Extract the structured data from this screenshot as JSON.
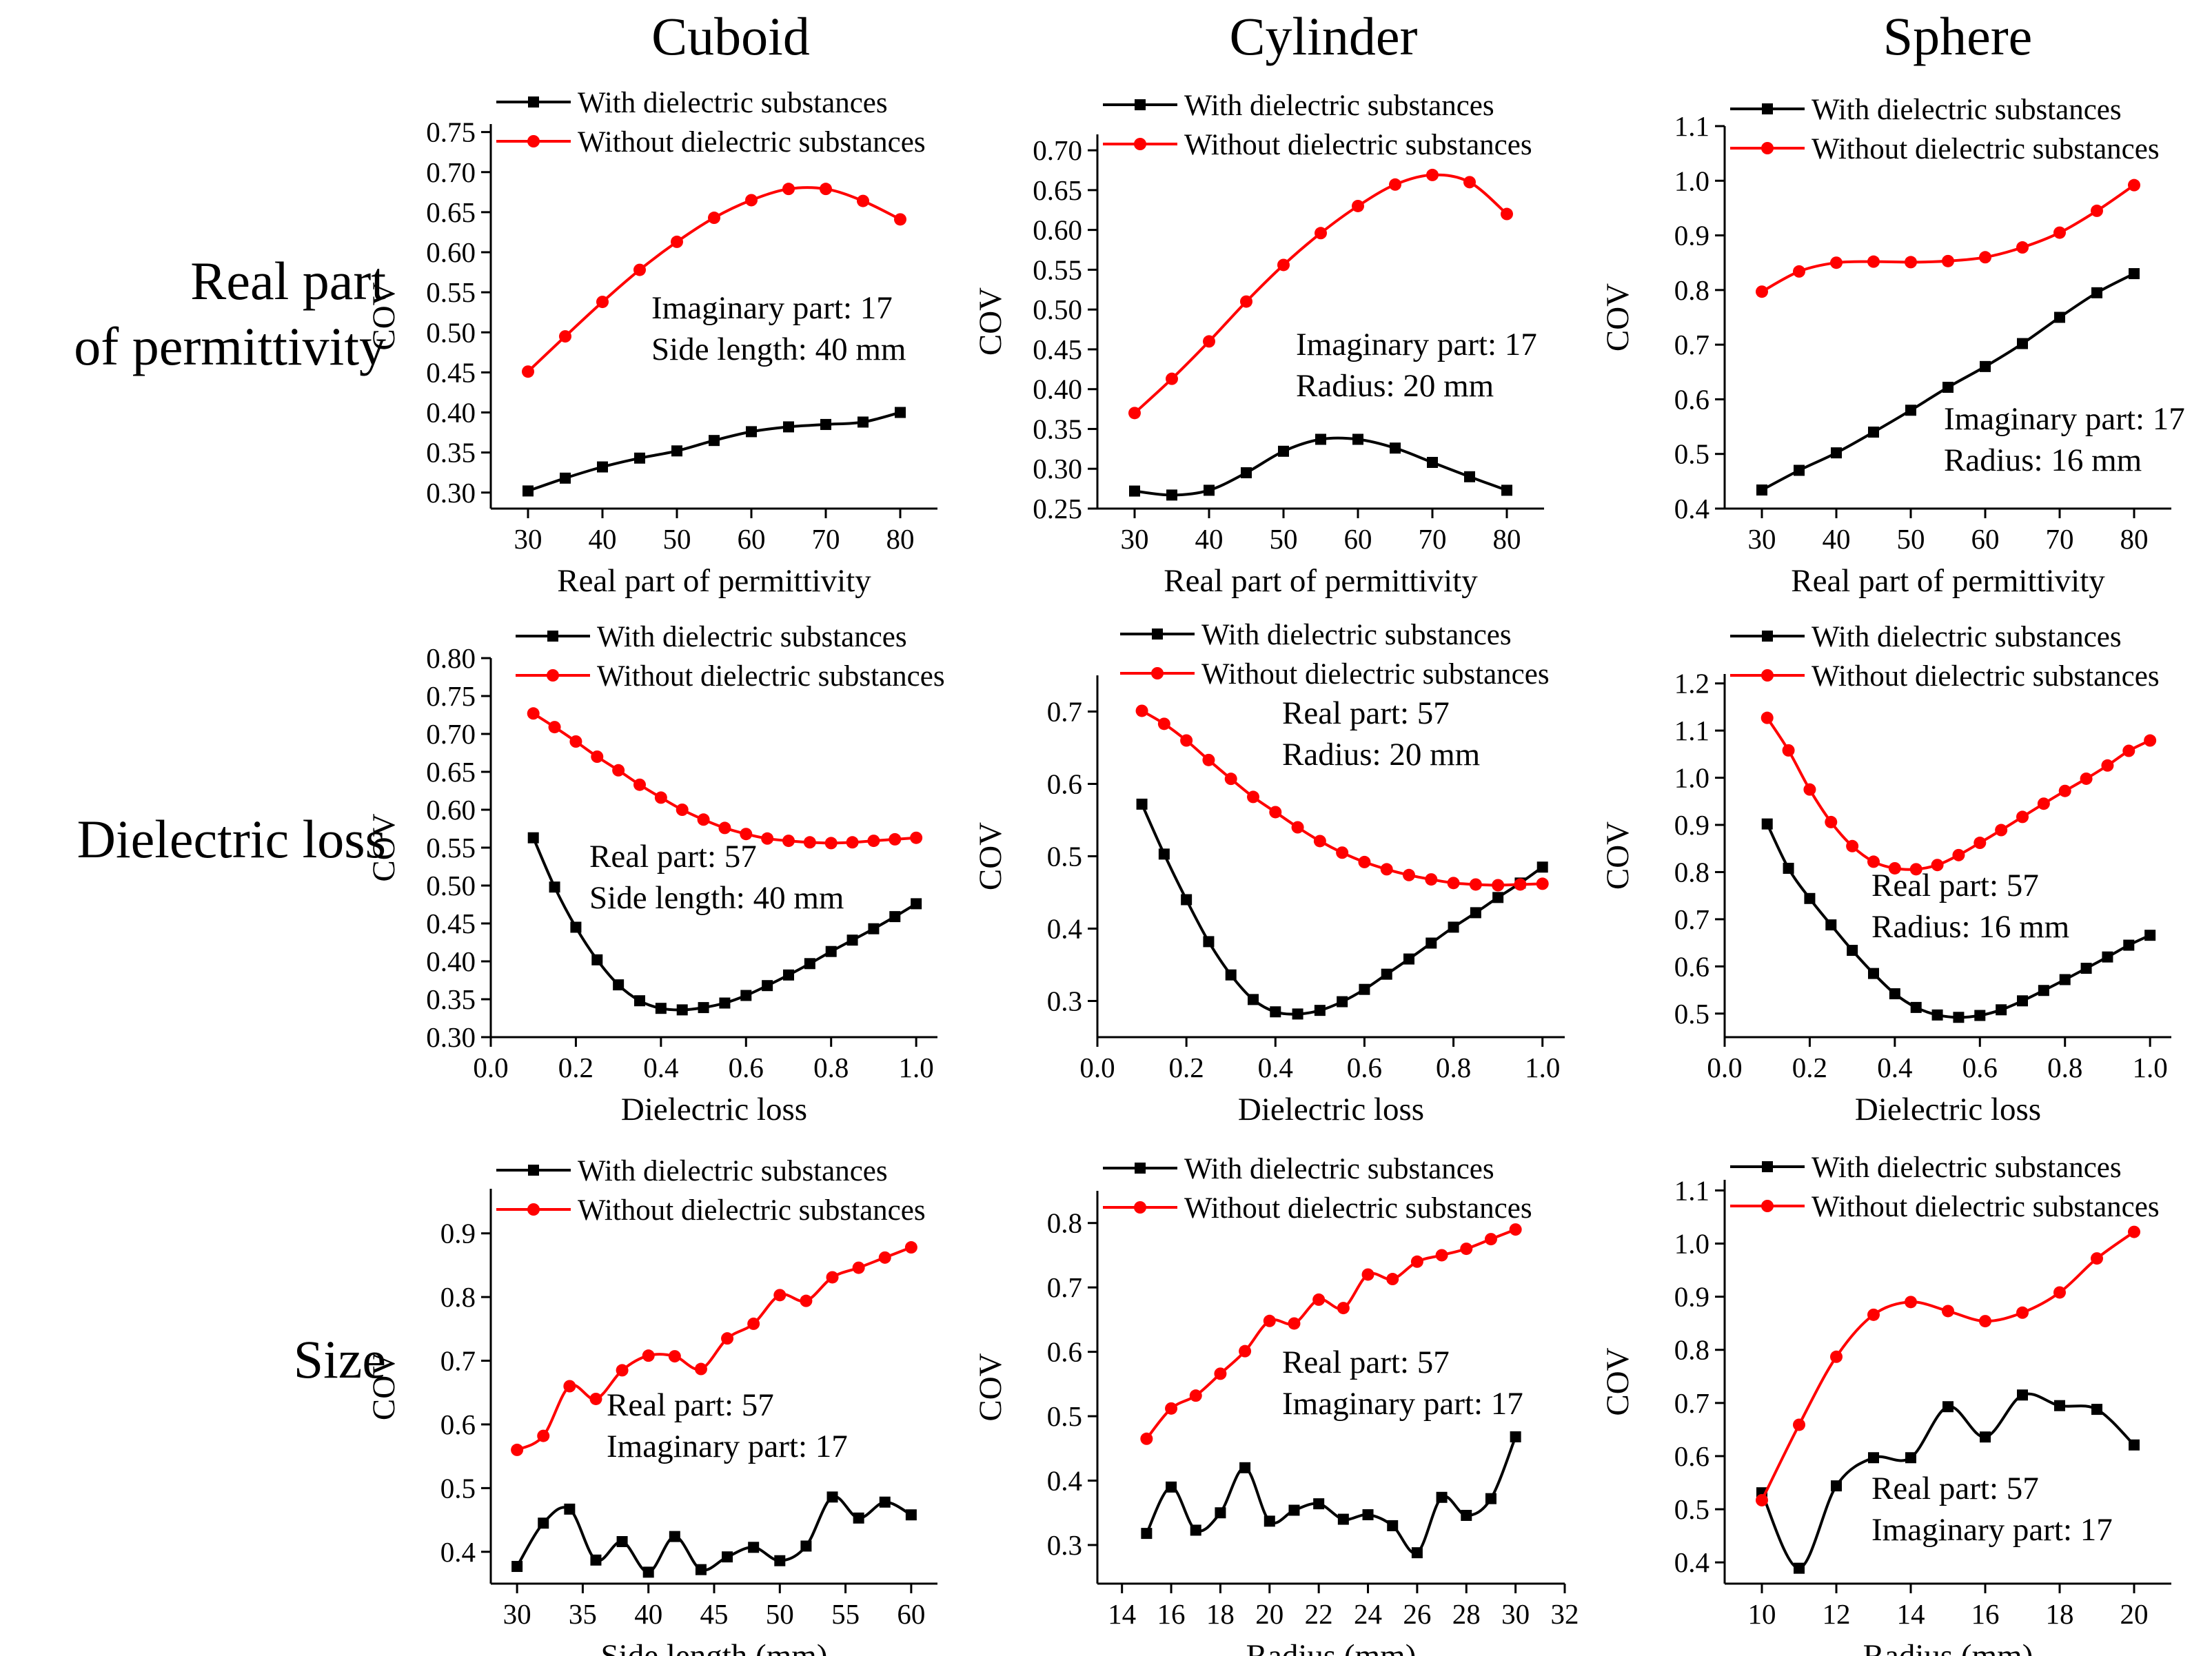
{
  "column_titles": [
    "Cuboid",
    "Cylinder",
    "Sphere"
  ],
  "row_labels": [
    [
      "Real part",
      "of permittivity"
    ],
    [
      "Dielectric loss"
    ],
    [
      "Size"
    ]
  ],
  "legend": {
    "with_label": "With dielectric substances",
    "without_label": "Without dielectric substances"
  },
  "colors": {
    "with": "#000000",
    "without": "#ff0000"
  },
  "chart_data": [
    {
      "id": "r0c0",
      "type": "line",
      "xlabel": "Real part of permittivity",
      "ylabel": "COV",
      "xlim": [
        25,
        85
      ],
      "xticks": [
        30,
        40,
        50,
        60,
        70,
        80
      ],
      "ylim": [
        0.28,
        0.76
      ],
      "yticks": [
        0.3,
        0.35,
        0.4,
        0.45,
        0.5,
        0.55,
        0.6,
        0.65,
        0.7,
        0.75
      ],
      "ydec": 2,
      "annotation": [
        "Imaginary part: 17",
        "Side length: 40 mm"
      ],
      "series": [
        {
          "name": "With dielectric substances",
          "x": [
            30,
            35,
            40,
            45,
            50,
            55,
            60,
            65,
            70,
            75,
            80
          ],
          "y": [
            0.302,
            0.318,
            0.332,
            0.343,
            0.352,
            0.365,
            0.376,
            0.382,
            0.385,
            0.388,
            0.4
          ]
        },
        {
          "name": "Without dielectric substances",
          "x": [
            30,
            35,
            40,
            45,
            50,
            55,
            60,
            65,
            70,
            75,
            80
          ],
          "y": [
            0.451,
            0.495,
            0.538,
            0.578,
            0.613,
            0.643,
            0.665,
            0.679,
            0.679,
            0.664,
            0.641
          ]
        }
      ]
    },
    {
      "id": "r0c1",
      "type": "line",
      "xlabel": "Real part of permittivity",
      "ylabel": "COV",
      "xlim": [
        25,
        85
      ],
      "xticks": [
        30,
        40,
        50,
        60,
        70,
        80
      ],
      "ylim": [
        0.25,
        0.72
      ],
      "yticks": [
        0.25,
        0.3,
        0.35,
        0.4,
        0.45,
        0.5,
        0.55,
        0.6,
        0.65,
        0.7
      ],
      "ydec": 2,
      "annotation": [
        "Imaginary part: 17",
        "Radius: 20 mm"
      ],
      "series": [
        {
          "name": "With dielectric substances",
          "x": [
            30,
            35,
            40,
            45,
            50,
            55,
            60,
            65,
            70,
            75,
            80
          ],
          "y": [
            0.272,
            0.267,
            0.273,
            0.295,
            0.322,
            0.337,
            0.337,
            0.326,
            0.308,
            0.29,
            0.273
          ]
        },
        {
          "name": "Without dielectric substances",
          "x": [
            30,
            35,
            40,
            45,
            50,
            55,
            60,
            65,
            70,
            75,
            80
          ],
          "y": [
            0.37,
            0.413,
            0.46,
            0.51,
            0.556,
            0.596,
            0.63,
            0.657,
            0.669,
            0.66,
            0.62
          ]
        }
      ]
    },
    {
      "id": "r0c2",
      "type": "line",
      "xlabel": "Real part of permittivity",
      "ylabel": "COV",
      "xlim": [
        25,
        85
      ],
      "xticks": [
        30,
        40,
        50,
        60,
        70,
        80
      ],
      "ylim": [
        0.4,
        1.1
      ],
      "yticks": [
        0.4,
        0.5,
        0.6,
        0.7,
        0.8,
        0.9,
        1.0,
        1.1
      ],
      "ydec": 1,
      "annotation": [
        "Imaginary part: 17",
        "Radius: 16 mm"
      ],
      "series": [
        {
          "name": "With dielectric substances",
          "x": [
            30,
            35,
            40,
            45,
            50,
            55,
            60,
            65,
            70,
            75,
            80
          ],
          "y": [
            0.434,
            0.47,
            0.502,
            0.54,
            0.58,
            0.622,
            0.66,
            0.702,
            0.75,
            0.795,
            0.83
          ]
        },
        {
          "name": "Without dielectric substances",
          "x": [
            30,
            35,
            40,
            45,
            50,
            55,
            60,
            65,
            70,
            75,
            80
          ],
          "y": [
            0.797,
            0.834,
            0.85,
            0.852,
            0.851,
            0.853,
            0.86,
            0.878,
            0.905,
            0.945,
            0.992
          ]
        }
      ]
    },
    {
      "id": "r1c0",
      "type": "line",
      "xlabel": "Dielectric loss",
      "ylabel": "COV",
      "xlim": [
        0,
        1.05
      ],
      "xticks": [
        0.0,
        0.2,
        0.4,
        0.6,
        0.8,
        1.0
      ],
      "xdec": 1,
      "ylim": [
        0.3,
        0.8
      ],
      "yticks": [
        0.3,
        0.35,
        0.4,
        0.45,
        0.5,
        0.55,
        0.6,
        0.65,
        0.7,
        0.75,
        0.8
      ],
      "ydec": 2,
      "annotation": [
        "Real part: 57",
        "Side length: 40 mm"
      ],
      "series": [
        {
          "name": "With dielectric substances",
          "x": [
            0.1,
            0.15,
            0.2,
            0.25,
            0.3,
            0.35,
            0.4,
            0.45,
            0.5,
            0.55,
            0.6,
            0.65,
            0.7,
            0.75,
            0.8,
            0.85,
            0.9,
            0.95,
            1.0
          ],
          "y": [
            0.563,
            0.498,
            0.445,
            0.402,
            0.369,
            0.348,
            0.338,
            0.336,
            0.339,
            0.345,
            0.355,
            0.368,
            0.382,
            0.397,
            0.413,
            0.428,
            0.443,
            0.459,
            0.476
          ]
        },
        {
          "name": "Without dielectric substances",
          "x": [
            0.1,
            0.15,
            0.2,
            0.25,
            0.3,
            0.35,
            0.4,
            0.45,
            0.5,
            0.55,
            0.6,
            0.65,
            0.7,
            0.75,
            0.8,
            0.85,
            0.9,
            0.95,
            1.0
          ],
          "y": [
            0.727,
            0.709,
            0.69,
            0.67,
            0.652,
            0.633,
            0.616,
            0.6,
            0.587,
            0.576,
            0.568,
            0.562,
            0.559,
            0.557,
            0.556,
            0.557,
            0.559,
            0.561,
            0.563
          ]
        }
      ]
    },
    {
      "id": "r1c1",
      "type": "line",
      "xlabel": "Dielectric loss",
      "ylabel": "COV",
      "xlim": [
        0,
        1.05
      ],
      "xticks": [
        0.0,
        0.2,
        0.4,
        0.6,
        0.8,
        1.0
      ],
      "xdec": 1,
      "ylim": [
        0.25,
        0.75
      ],
      "yticks": [
        0.3,
        0.4,
        0.5,
        0.6,
        0.7
      ],
      "ydec": 1,
      "annotation": [
        "Real part: 57",
        "Radius: 20 mm"
      ],
      "series": [
        {
          "name": "With dielectric substances",
          "x": [
            0.1,
            0.15,
            0.2,
            0.25,
            0.3,
            0.35,
            0.4,
            0.45,
            0.5,
            0.55,
            0.6,
            0.65,
            0.7,
            0.75,
            0.8,
            0.85,
            0.9,
            0.95,
            1.0
          ],
          "y": [
            0.572,
            0.503,
            0.44,
            0.382,
            0.336,
            0.302,
            0.285,
            0.282,
            0.287,
            0.299,
            0.316,
            0.337,
            0.358,
            0.38,
            0.402,
            0.422,
            0.443,
            0.463,
            0.485
          ]
        },
        {
          "name": "Without dielectric substances",
          "x": [
            0.1,
            0.15,
            0.2,
            0.25,
            0.3,
            0.35,
            0.4,
            0.45,
            0.5,
            0.55,
            0.6,
            0.65,
            0.7,
            0.75,
            0.8,
            0.85,
            0.9,
            0.95,
            1.0
          ],
          "y": [
            0.701,
            0.683,
            0.66,
            0.633,
            0.607,
            0.582,
            0.561,
            0.54,
            0.521,
            0.505,
            0.492,
            0.482,
            0.474,
            0.468,
            0.463,
            0.461,
            0.46,
            0.461,
            0.462
          ]
        }
      ]
    },
    {
      "id": "r1c2",
      "type": "line",
      "xlabel": "Dielectric loss",
      "ylabel": "COV",
      "xlim": [
        0,
        1.05
      ],
      "xticks": [
        0.0,
        0.2,
        0.4,
        0.6,
        0.8,
        1.0
      ],
      "xdec": 1,
      "ylim": [
        0.45,
        1.22
      ],
      "yticks": [
        0.5,
        0.6,
        0.7,
        0.8,
        0.9,
        1.0,
        1.1,
        1.2
      ],
      "ydec": 1,
      "annotation": [
        "Real part: 57",
        "Radius: 16 mm"
      ],
      "series": [
        {
          "name": "With dielectric substances",
          "x": [
            0.1,
            0.15,
            0.2,
            0.25,
            0.3,
            0.35,
            0.4,
            0.45,
            0.5,
            0.55,
            0.6,
            0.65,
            0.7,
            0.75,
            0.8,
            0.85,
            0.9,
            0.95,
            1.0
          ],
          "y": [
            0.902,
            0.808,
            0.744,
            0.688,
            0.634,
            0.585,
            0.542,
            0.513,
            0.497,
            0.492,
            0.496,
            0.508,
            0.527,
            0.549,
            0.572,
            0.596,
            0.62,
            0.645,
            0.666
          ]
        },
        {
          "name": "Without dielectric substances",
          "x": [
            0.1,
            0.15,
            0.2,
            0.25,
            0.3,
            0.35,
            0.4,
            0.45,
            0.5,
            0.55,
            0.6,
            0.65,
            0.7,
            0.75,
            0.8,
            0.85,
            0.9,
            0.95,
            1.0
          ],
          "y": [
            1.127,
            1.058,
            0.975,
            0.906,
            0.855,
            0.822,
            0.808,
            0.806,
            0.815,
            0.836,
            0.862,
            0.889,
            0.917,
            0.945,
            0.972,
            0.998,
            1.026,
            1.057,
            1.079
          ]
        }
      ]
    },
    {
      "id": "r2c0",
      "type": "line",
      "xlabel": "Side length (mm)",
      "ylabel": "COV",
      "xlim": [
        28,
        62
      ],
      "xticks": [
        30,
        35,
        40,
        45,
        50,
        55,
        60
      ],
      "ylim": [
        0.35,
        0.97
      ],
      "yticks": [
        0.4,
        0.5,
        0.6,
        0.7,
        0.8,
        0.9
      ],
      "ydec": 1,
      "annotation": [
        "Real part: 57",
        "Imaginary part: 17"
      ],
      "series": [
        {
          "name": "With dielectric substances",
          "x": [
            30,
            32,
            34,
            36,
            38,
            40,
            42,
            44,
            46,
            48,
            50,
            52,
            54,
            56,
            58,
            60
          ],
          "y": [
            0.377,
            0.445,
            0.467,
            0.387,
            0.416,
            0.368,
            0.424,
            0.372,
            0.392,
            0.407,
            0.386,
            0.409,
            0.486,
            0.453,
            0.478,
            0.458
          ]
        },
        {
          "name": "Without dielectric substances",
          "x": [
            30,
            32,
            34,
            36,
            38,
            40,
            42,
            44,
            46,
            48,
            50,
            52,
            54,
            56,
            58,
            60
          ],
          "y": [
            0.56,
            0.582,
            0.66,
            0.64,
            0.685,
            0.708,
            0.707,
            0.687,
            0.735,
            0.758,
            0.803,
            0.794,
            0.831,
            0.846,
            0.862,
            0.878
          ]
        }
      ]
    },
    {
      "id": "r2c1",
      "type": "line",
      "xlabel": "Radius (mm)",
      "ylabel": "COV",
      "xlim": [
        13,
        32
      ],
      "xticks": [
        14,
        16,
        18,
        20,
        22,
        24,
        26,
        28,
        30,
        32
      ],
      "ylim": [
        0.24,
        0.85
      ],
      "yticks": [
        0.3,
        0.4,
        0.5,
        0.6,
        0.7,
        0.8
      ],
      "ydec": 1,
      "annotation": [
        "Real part: 57",
        "Imaginary part: 17"
      ],
      "series": [
        {
          "name": "With dielectric substances",
          "x": [
            15,
            16,
            17,
            18,
            19,
            20,
            21,
            22,
            23,
            24,
            25,
            26,
            27,
            28,
            29,
            30
          ],
          "y": [
            0.318,
            0.39,
            0.323,
            0.35,
            0.42,
            0.337,
            0.354,
            0.364,
            0.34,
            0.347,
            0.33,
            0.288,
            0.374,
            0.346,
            0.372,
            0.468
          ]
        },
        {
          "name": "Without dielectric substances",
          "x": [
            15,
            16,
            17,
            18,
            19,
            20,
            21,
            22,
            23,
            24,
            25,
            26,
            27,
            28,
            29,
            30
          ],
          "y": [
            0.465,
            0.512,
            0.532,
            0.566,
            0.601,
            0.648,
            0.644,
            0.681,
            0.668,
            0.72,
            0.713,
            0.74,
            0.75,
            0.76,
            0.775,
            0.79
          ]
        }
      ]
    },
    {
      "id": "r2c2",
      "type": "line",
      "xlabel": "Radius (mm)",
      "ylabel": "COV",
      "xlim": [
        9,
        21
      ],
      "xticks": [
        10,
        12,
        14,
        16,
        18,
        20
      ],
      "ylim": [
        0.36,
        1.12
      ],
      "yticks": [
        0.4,
        0.5,
        0.6,
        0.7,
        0.8,
        0.9,
        1.0,
        1.1
      ],
      "ydec": 1,
      "annotation": [
        "Real part: 57",
        "Imaginary part: 17"
      ],
      "series": [
        {
          "name": "With dielectric substances",
          "x": [
            10,
            11,
            12,
            13,
            14,
            15,
            16,
            17,
            18,
            19,
            20
          ],
          "y": [
            0.531,
            0.389,
            0.544,
            0.597,
            0.597,
            0.693,
            0.636,
            0.715,
            0.695,
            0.688,
            0.621
          ]
        },
        {
          "name": "Without dielectric substances",
          "x": [
            10,
            11,
            12,
            13,
            14,
            15,
            16,
            17,
            18,
            19,
            20
          ],
          "y": [
            0.517,
            0.659,
            0.787,
            0.866,
            0.89,
            0.873,
            0.854,
            0.87,
            0.908,
            0.972,
            1.022
          ]
        }
      ]
    }
  ]
}
